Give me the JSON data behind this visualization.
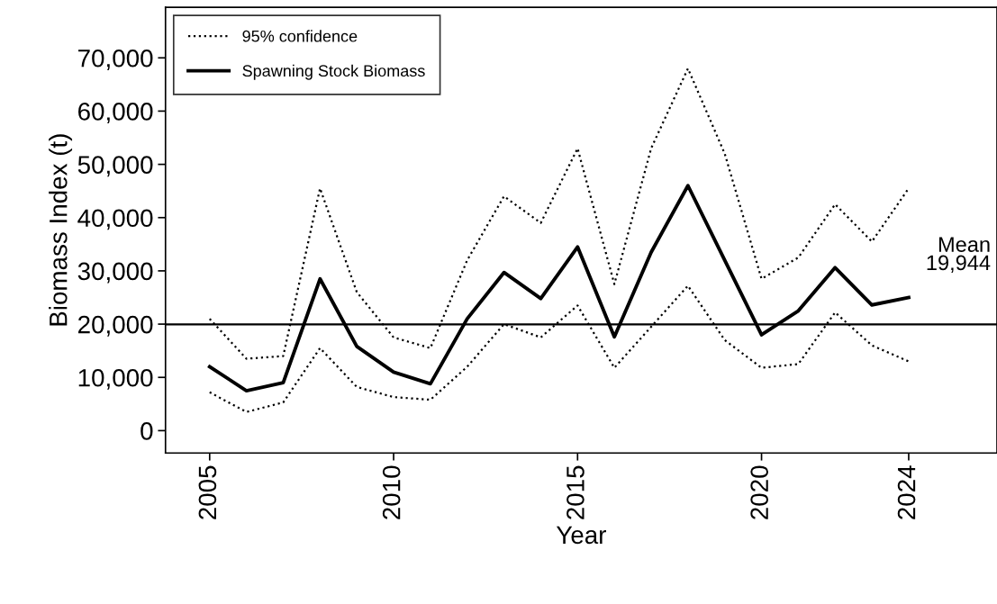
{
  "chart_data": {
    "type": "line",
    "xlabel": "Year",
    "ylabel": "Biomass Index (t)",
    "x": [
      2005,
      2006,
      2007,
      2008,
      2009,
      2010,
      2011,
      2012,
      2013,
      2014,
      2015,
      2016,
      2017,
      2018,
      2019,
      2020,
      2021,
      2022,
      2023,
      2024
    ],
    "series": [
      {
        "name": "95% confidence",
        "color": "#000000",
        "line_style": "dotted",
        "values": [
          21000,
          13500,
          14000,
          45500,
          26000,
          17500,
          15500,
          32000,
          44000,
          39000,
          53000,
          27500,
          53000,
          68000,
          52000,
          28500,
          32500,
          42500,
          35500,
          45500
        ]
      },
      {
        "color": "#000000",
        "line_style": "dotted",
        "values": [
          7200,
          3500,
          5300,
          15500,
          8200,
          6300,
          5800,
          12000,
          20000,
          17500,
          23500,
          11800,
          19500,
          27200,
          17000,
          11800,
          12500,
          22200,
          16000,
          13000
        ]
      },
      {
        "name": "Spawning Stock Biomass",
        "color": "#000000",
        "line_style": "solid",
        "values": [
          12000,
          7500,
          9000,
          28500,
          15800,
          11000,
          8800,
          21000,
          29700,
          24800,
          34500,
          17600,
          33500,
          46000,
          32000,
          18000,
          22500,
          30600,
          23600,
          25000
        ]
      }
    ],
    "ref_lines": [
      {
        "axis": "y",
        "value": 19944,
        "label": "Mean\n19,944",
        "color": "#000000"
      }
    ],
    "xlim": [
      2003.8,
      2026.4
    ],
    "ylim": [
      -4200,
      79500
    ],
    "xticks": [
      2005,
      2010,
      2015,
      2020,
      2024
    ],
    "yticks": [
      0,
      {
        "value": 10000,
        "label": "10,000"
      },
      {
        "value": 20000,
        "label": "20,000"
      },
      {
        "value": 30000,
        "label": "30,000"
      },
      {
        "value": 40000,
        "label": "40,000"
      },
      {
        "value": 50000,
        "label": "50,000"
      },
      {
        "value": 60000,
        "label": "60,000"
      },
      {
        "value": 70000,
        "label": "70,000"
      }
    ],
    "grid": false,
    "legend": "top left",
    "marker": "none"
  }
}
